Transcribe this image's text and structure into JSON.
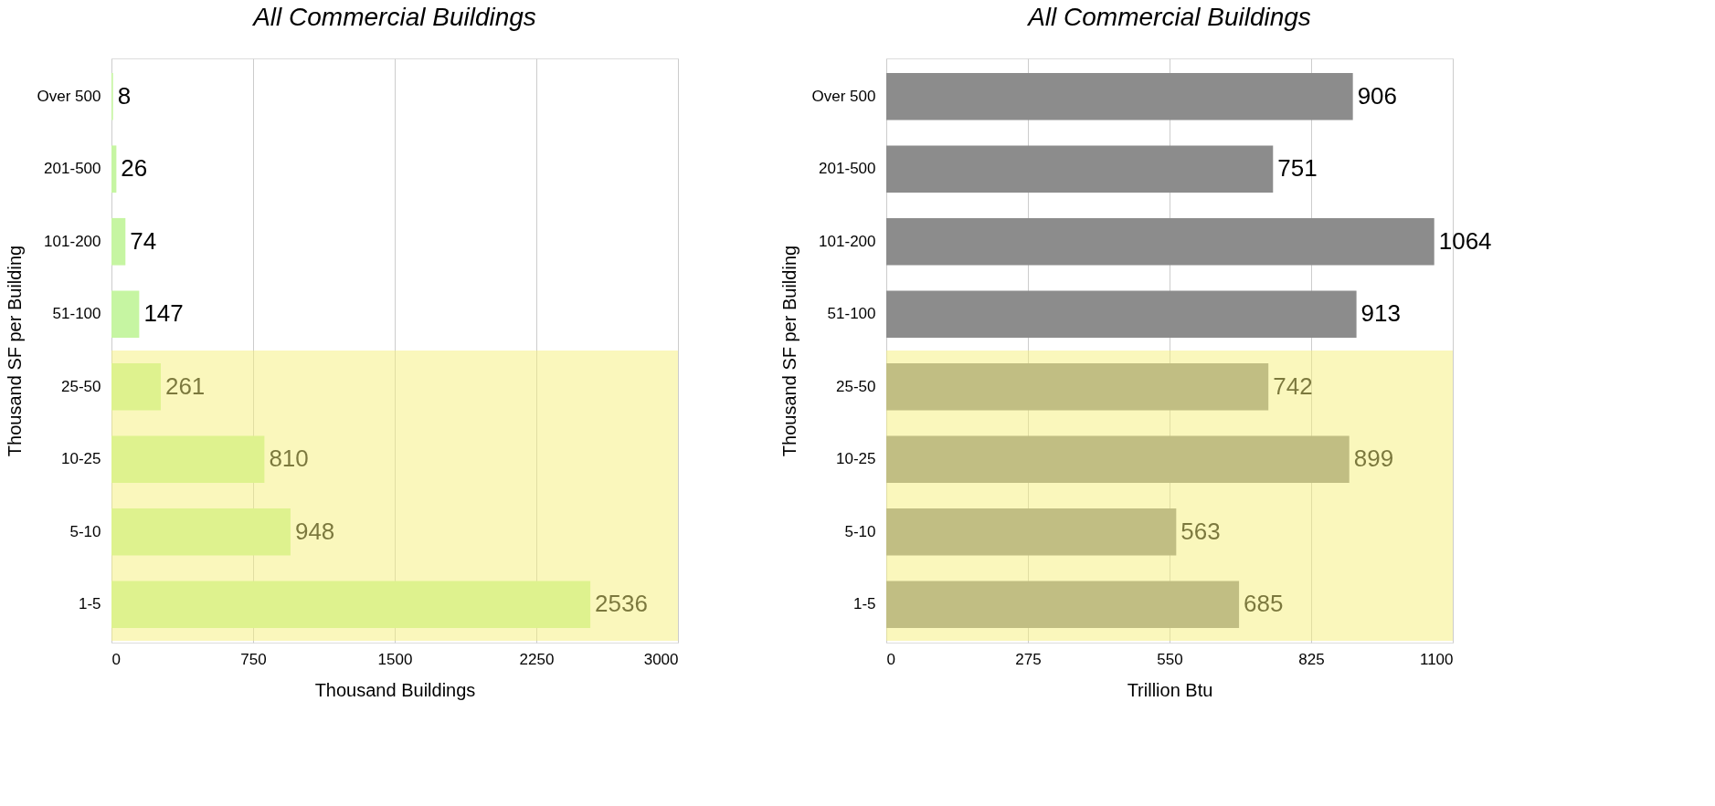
{
  "chart_data": [
    {
      "type": "bar",
      "orientation": "horizontal",
      "title": "All Commercial Buildings",
      "xlabel": "Thousand Buildings",
      "ylabel": "Thousand SF per Building",
      "categories": [
        "Over 500",
        "201-500",
        "101-200",
        "51-100",
        "25-50",
        "10-25",
        "5-10",
        "1-5"
      ],
      "values": [
        8,
        26,
        74,
        147,
        261,
        810,
        948,
        2536
      ],
      "color": "#c6f5a2",
      "xlim": [
        0,
        3000
      ],
      "xticks": [
        0,
        750,
        1500,
        2250,
        3000
      ],
      "grid": "x",
      "data_labels": true,
      "bands": [
        {
          "axis": "y",
          "from": "25-50",
          "to": "1-5",
          "color": "#f5f07a"
        }
      ]
    },
    {
      "type": "bar",
      "orientation": "horizontal",
      "title": "All Commercial Buildings",
      "xlabel": "Trillion Btu",
      "ylabel": "Thousand SF per Building",
      "categories": [
        "Over 500",
        "201-500",
        "101-200",
        "51-100",
        "25-50",
        "10-25",
        "5-10",
        "1-5"
      ],
      "values": [
        906,
        751,
        1064,
        913,
        742,
        899,
        563,
        685
      ],
      "color": "#8c8c8c",
      "xlim": [
        0,
        1100
      ],
      "xticks": [
        0,
        275,
        550,
        825,
        1100
      ],
      "grid": "x",
      "data_labels": true,
      "bands": [
        {
          "axis": "y",
          "from": "25-50",
          "to": "1-5",
          "color": "#f5f07a"
        }
      ]
    }
  ]
}
